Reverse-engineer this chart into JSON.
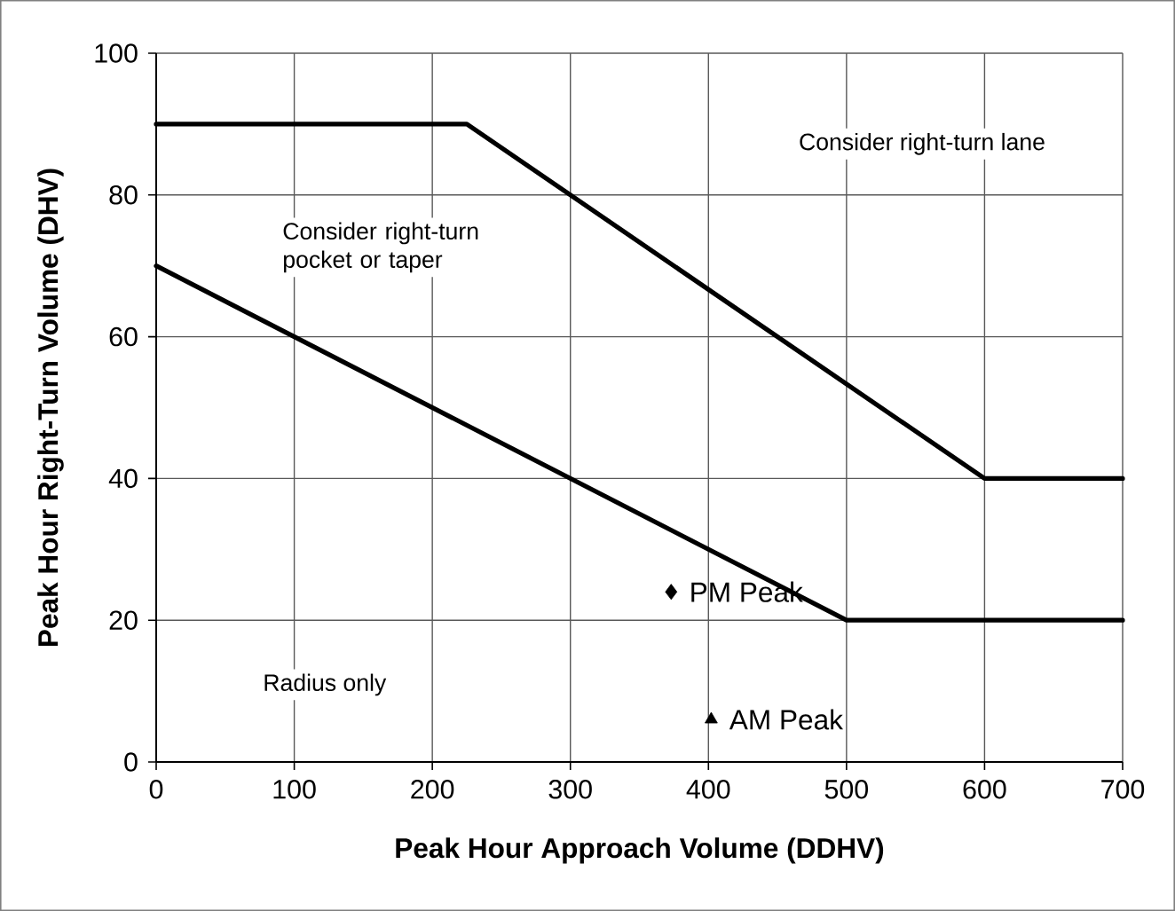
{
  "chart_data": {
    "type": "line",
    "xlabel": "Peak Hour Approach Volume (DDHV)",
    "ylabel": "Peak Hour Right-Turn Volume (DHV)",
    "xlim": [
      0,
      700
    ],
    "ylim": [
      0,
      100
    ],
    "xticks": [
      0,
      100,
      200,
      300,
      400,
      500,
      600,
      700
    ],
    "yticks": [
      0,
      20,
      40,
      60,
      80,
      100
    ],
    "grid": true,
    "series": [
      {
        "color": "#000000",
        "x": [
          0,
          225,
          600,
          700
        ],
        "values": [
          90,
          90,
          40,
          40
        ]
      },
      {
        "color": "#000000",
        "x": [
          0,
          500,
          700
        ],
        "values": [
          70,
          20,
          20
        ]
      },
      {
        "name": "PM Peak",
        "type": "scatter",
        "marker": "diamond",
        "color": "#000000",
        "x": [
          373
        ],
        "values": [
          24
        ]
      },
      {
        "name": "AM Peak",
        "type": "scatter",
        "marker": "triangle",
        "color": "#000000",
        "x": [
          402
        ],
        "values": [
          6
        ]
      }
    ],
    "annotations": [
      "Consider right-turn lane",
      "Consider right-turn pocket or taper",
      "Radius only"
    ]
  }
}
